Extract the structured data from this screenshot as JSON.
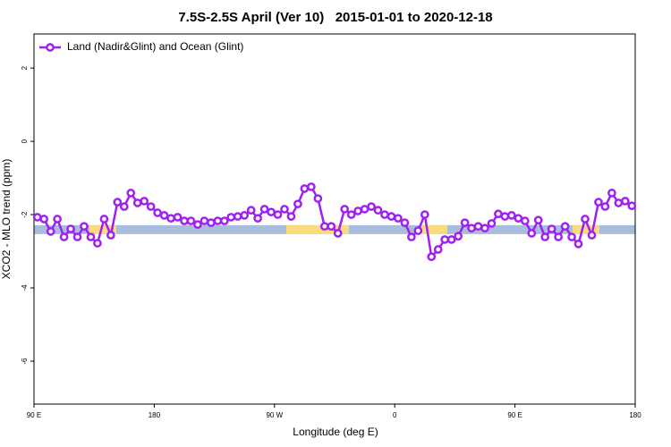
{
  "chart_data": {
    "type": "line",
    "title": "7.5S-2.5S April (Ver 10)   2015-01-01 to 2020-12-18",
    "xlabel": "Longitude (deg E)",
    "ylabel": "XCO2 - MLO trend (ppm)",
    "x": [
      92.5,
      97.5,
      102.5,
      107.5,
      112.5,
      117.5,
      122.5,
      127.5,
      132.5,
      137.5,
      142.5,
      147.5,
      152.5,
      157.5,
      162.5,
      167.5,
      172.5,
      177.5,
      182.5,
      187.5,
      192.5,
      197.5,
      202.5,
      207.5,
      212.5,
      217.5,
      222.5,
      227.5,
      232.5,
      237.5,
      242.5,
      247.5,
      252.5,
      257.5,
      262.5,
      267.5,
      272.5,
      277.5,
      282.5,
      287.5,
      292.5,
      297.5,
      302.5,
      307.5,
      312.5,
      317.5,
      322.5,
      327.5,
      332.5,
      337.5,
      342.5,
      347.5,
      352.5,
      357.5,
      362.5,
      367.5,
      372.5,
      377.5,
      382.5,
      387.5,
      392.5,
      397.5,
      402.5,
      407.5,
      412.5,
      417.5,
      422.5,
      427.5,
      432.5,
      437.5,
      442.5,
      447.5,
      452.5,
      457.5,
      462.5,
      467.5,
      472.5,
      477.5,
      482.5,
      487.5,
      492.5,
      497.5,
      502.5,
      507.5,
      512.5,
      517.5,
      522.5,
      527.5,
      532.5,
      537.5
    ],
    "series": [
      {
        "name": "Land (Nadir&Glint) and Ocean (Glint)",
        "color": "#a020f0",
        "values": [
          -2.07,
          -2.12,
          -2.46,
          -2.12,
          -2.61,
          -2.39,
          -2.61,
          -2.32,
          -2.61,
          -2.78,
          -2.12,
          -2.56,
          -1.66,
          -1.78,
          -1.41,
          -1.68,
          -1.63,
          -1.78,
          -1.95,
          -2.02,
          -2.1,
          -2.07,
          -2.17,
          -2.17,
          -2.27,
          -2.17,
          -2.22,
          -2.17,
          -2.17,
          -2.07,
          -2.05,
          -2.02,
          -1.88,
          -2.1,
          -1.85,
          -1.93,
          -2.0,
          -1.85,
          -2.05,
          -1.71,
          -1.29,
          -1.24,
          -1.56,
          -2.32,
          -2.32,
          -2.51,
          -1.85,
          -2.0,
          -1.9,
          -1.85,
          -1.78,
          -1.88,
          -2.0,
          -2.05,
          -2.1,
          -2.22,
          -2.61,
          -2.44,
          -2.0,
          -3.15,
          -2.95,
          -2.68,
          -2.68,
          -2.59,
          -2.22,
          -2.37,
          -2.32,
          -2.37,
          -2.24,
          -1.98,
          -2.05,
          -2.02,
          -2.1,
          -2.17,
          -2.51,
          -2.15,
          -2.61,
          -2.39,
          -2.61,
          -2.32,
          -2.61,
          -2.8,
          -2.12,
          -2.56,
          -1.66,
          -1.78,
          -1.41,
          -1.68,
          -1.63,
          -1.76
        ]
      }
    ],
    "band": {
      "value": -2.41,
      "color": "#a7bddb",
      "highlight_color": "#f9dc80",
      "highlights": [
        [
          131.5,
          151.6
        ],
        [
          278.8,
          325.7
        ],
        [
          379.3,
          399.4
        ],
        [
          493.1,
          513.2
        ]
      ]
    },
    "xlim": [
      90,
      540
    ],
    "xticks": [
      {
        "value": 90,
        "label": "90 E"
      },
      180,
      {
        "value": 270,
        "label": "90 W"
      },
      0,
      {
        "value": 450,
        "label": "90 E"
      },
      {
        "value": 540,
        "label": "180"
      }
    ],
    "ylim": [
      -7.17,
      2.93
    ],
    "yticks": [
      -6,
      -4,
      -2,
      0,
      2
    ],
    "legend": "top-left"
  }
}
